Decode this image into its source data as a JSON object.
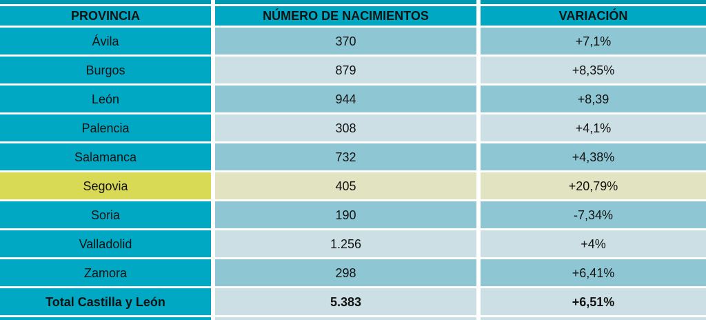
{
  "colors": {
    "cyan": "#00a8c3",
    "cyan_strip": "#0099b0",
    "row_dark": "#8ec7d3",
    "row_light": "#ccdfe4",
    "highlight_strong": "#d8d955",
    "highlight_light": "#e2e3c0",
    "text": "#121212",
    "background": "#ffffff"
  },
  "table": {
    "headers": [
      "PROVINCIA",
      "NÚMERO DE NACIMIENTOS",
      "VARIACIÓN"
    ],
    "rows": [
      {
        "provincia": "Ávila",
        "nacimientos": "370",
        "variacion": "+7,1%"
      },
      {
        "provincia": "Burgos",
        "nacimientos": "879",
        "variacion": "+8,35%"
      },
      {
        "provincia": "León",
        "nacimientos": "944",
        "variacion": "+8,39"
      },
      {
        "provincia": "Palencia",
        "nacimientos": "308",
        "variacion": "+4,1%"
      },
      {
        "provincia": "Salamanca",
        "nacimientos": "732",
        "variacion": "+4,38%"
      },
      {
        "provincia": "Segovia",
        "nacimientos": "405",
        "variacion": "+20,79%",
        "highlight": true
      },
      {
        "provincia": "Soria",
        "nacimientos": "190",
        "variacion": "-7,34%"
      },
      {
        "provincia": "Valladolid",
        "nacimientos": "1.256",
        "variacion": "+4%"
      },
      {
        "provincia": "Zamora",
        "nacimientos": "298",
        "variacion": "+6,41%"
      },
      {
        "provincia": "Total Castilla y León",
        "nacimientos": "5.383",
        "variacion": "+6,51%",
        "total": true
      }
    ]
  },
  "chart_data": {
    "type": "table",
    "columns": [
      "PROVINCIA",
      "NÚMERO DE NACIMIENTOS",
      "VARIACIÓN"
    ],
    "rows": [
      [
        "Ávila",
        "370",
        "+7,1%"
      ],
      [
        "Burgos",
        "879",
        "+8,35%"
      ],
      [
        "León",
        "944",
        "+8,39"
      ],
      [
        "Palencia",
        "308",
        "+4,1%"
      ],
      [
        "Salamanca",
        "732",
        "+4,38%"
      ],
      [
        "Segovia",
        "405",
        "+20,79%"
      ],
      [
        "Soria",
        "190",
        "-7,34%"
      ],
      [
        "Valladolid",
        "1.256",
        "+4%"
      ],
      [
        "Zamora",
        "298",
        "+6,41%"
      ],
      [
        "Total Castilla y León",
        "5.383",
        "+6,51%"
      ]
    ],
    "numeric_values": {
      "nacimientos": [
        370,
        879,
        944,
        308,
        732,
        405,
        190,
        1256,
        298,
        5383
      ],
      "variacion_pct": [
        7.1,
        8.35,
        8.39,
        4.1,
        4.38,
        20.79,
        -7.34,
        4,
        6.41,
        6.51
      ]
    },
    "highlighted_row": "Segovia",
    "total_row": [
      "Total Castilla y León",
      "5.383",
      "+6,51%"
    ],
    "layout_hints": {
      "header_background": "cyan",
      "row_striping": "alternating dark/light blue",
      "highlight_row_background": "yellow",
      "grid": "white gaps between cells",
      "text_alignment": "center"
    }
  }
}
